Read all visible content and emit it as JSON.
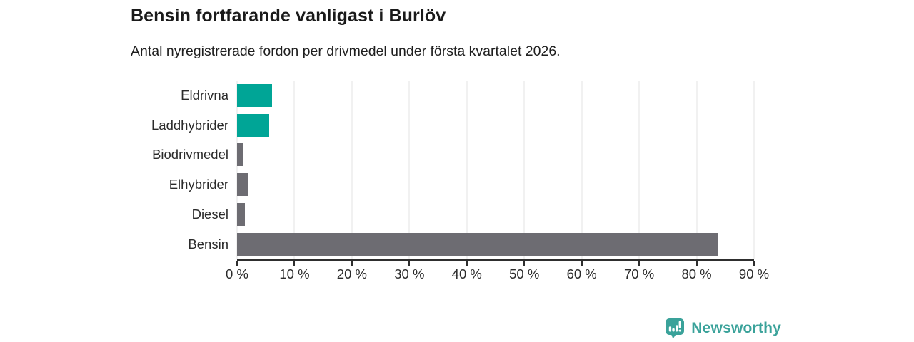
{
  "chart_data": {
    "type": "bar",
    "orientation": "horizontal",
    "title": "Bensin fortfarande vanligast i Burlöv",
    "subtitle": "Antal nyregistrerade fordon per drivmedel under första kvartalet 2026.",
    "categories": [
      "Eldrivna",
      "Laddhybrider",
      "Biodrivmedel",
      "Elhybrider",
      "Diesel",
      "Bensin"
    ],
    "values": [
      6.1,
      5.6,
      1.1,
      2.0,
      1.4,
      83.8
    ],
    "unit": "%",
    "xlim": [
      0,
      90
    ],
    "xticks": [
      0,
      10,
      20,
      30,
      40,
      50,
      60,
      70,
      80,
      90
    ],
    "xtick_labels": [
      "0 %",
      "10 %",
      "20 %",
      "30 %",
      "40 %",
      "50 %",
      "60 %",
      "70 %",
      "80 %",
      "90 %"
    ],
    "bar_colors": [
      "#00a596",
      "#00a596",
      "#6d6c72",
      "#6d6c72",
      "#6d6c72",
      "#6d6c72"
    ],
    "accent_color": "#00a596",
    "neutral_color": "#6d6c72",
    "grid": "vertical",
    "legend": "none"
  },
  "footer": {
    "brand": "Newsworthy",
    "brand_color": "#3aa29a"
  }
}
